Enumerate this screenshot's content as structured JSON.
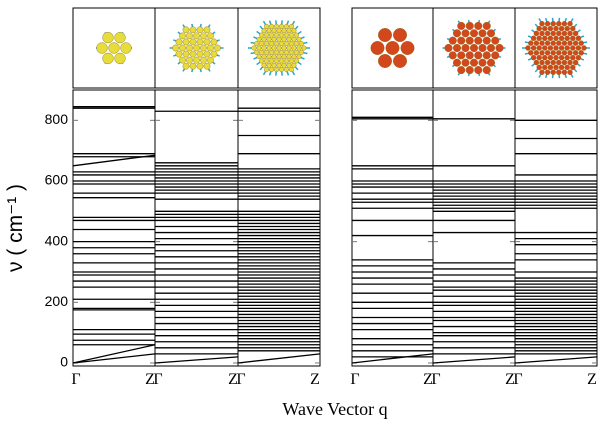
{
  "xlabel": "Wave Vector q",
  "ylabel": "ν ( cm⁻¹ )",
  "chart_data": [
    {
      "type": "line",
      "categories": [
        "Γ",
        "Z"
      ],
      "ylim": [
        -10,
        900
      ],
      "yticks": [
        0,
        200,
        400,
        600,
        800
      ],
      "bands": [
        [
          845,
          845
        ],
        [
          840,
          840
        ],
        [
          690,
          690
        ],
        [
          680,
          680
        ],
        [
          650,
          685
        ],
        [
          630,
          630
        ],
        [
          620,
          620
        ],
        [
          600,
          600
        ],
        [
          590,
          590
        ],
        [
          560,
          560
        ],
        [
          545,
          545
        ],
        [
          480,
          480
        ],
        [
          470,
          470
        ],
        [
          440,
          440
        ],
        [
          400,
          400
        ],
        [
          380,
          380
        ],
        [
          360,
          360
        ],
        [
          330,
          330
        ],
        [
          300,
          300
        ],
        [
          290,
          290
        ],
        [
          270,
          270
        ],
        [
          250,
          250
        ],
        [
          210,
          210
        ],
        [
          180,
          180
        ],
        [
          175,
          175
        ],
        [
          110,
          110
        ],
        [
          95,
          95
        ],
        [
          75,
          75
        ],
        [
          60,
          60
        ],
        [
          0,
          30
        ],
        [
          0,
          60
        ]
      ]
    },
    {
      "type": "line",
      "categories": [
        "Γ",
        "Z"
      ],
      "ylim": [
        -10,
        900
      ],
      "yticks": [
        0,
        200,
        400,
        600,
        800
      ],
      "bands": [
        [
          830,
          830
        ],
        [
          660,
          660
        ],
        [
          650,
          650
        ],
        [
          640,
          640
        ],
        [
          630,
          630
        ],
        [
          620,
          620
        ],
        [
          610,
          610
        ],
        [
          600,
          600
        ],
        [
          590,
          590
        ],
        [
          580,
          580
        ],
        [
          570,
          570
        ],
        [
          560,
          560
        ],
        [
          540,
          540
        ],
        [
          500,
          500
        ],
        [
          490,
          490
        ],
        [
          480,
          480
        ],
        [
          470,
          470
        ],
        [
          450,
          450
        ],
        [
          430,
          430
        ],
        [
          410,
          410
        ],
        [
          390,
          390
        ],
        [
          370,
          370
        ],
        [
          350,
          350
        ],
        [
          330,
          330
        ],
        [
          310,
          310
        ],
        [
          290,
          290
        ],
        [
          270,
          270
        ],
        [
          250,
          250
        ],
        [
          230,
          230
        ],
        [
          210,
          210
        ],
        [
          190,
          190
        ],
        [
          170,
          170
        ],
        [
          150,
          150
        ],
        [
          130,
          130
        ],
        [
          110,
          110
        ],
        [
          90,
          90
        ],
        [
          70,
          70
        ],
        [
          50,
          50
        ],
        [
          30,
          30
        ],
        [
          0,
          20
        ]
      ]
    },
    {
      "type": "line",
      "categories": [
        "Γ",
        "Z"
      ],
      "ylim": [
        -10,
        900
      ],
      "yticks": [
        0,
        200,
        400,
        600,
        800
      ],
      "bands": [
        [
          840,
          840
        ],
        [
          830,
          830
        ],
        [
          750,
          750
        ],
        [
          690,
          690
        ],
        [
          640,
          640
        ],
        [
          630,
          630
        ],
        [
          620,
          620
        ],
        [
          610,
          610
        ],
        [
          600,
          600
        ],
        [
          590,
          590
        ],
        [
          580,
          580
        ],
        [
          570,
          570
        ],
        [
          560,
          560
        ],
        [
          550,
          550
        ],
        [
          540,
          540
        ],
        [
          500,
          500
        ],
        [
          490,
          490
        ],
        [
          480,
          480
        ],
        [
          470,
          470
        ],
        [
          460,
          460
        ],
        [
          450,
          450
        ],
        [
          440,
          440
        ],
        [
          430,
          430
        ],
        [
          420,
          420
        ],
        [
          410,
          410
        ],
        [
          400,
          400
        ],
        [
          390,
          390
        ],
        [
          380,
          380
        ],
        [
          370,
          370
        ],
        [
          360,
          360
        ],
        [
          350,
          350
        ],
        [
          340,
          340
        ],
        [
          330,
          330
        ],
        [
          320,
          320
        ],
        [
          310,
          310
        ],
        [
          300,
          300
        ],
        [
          290,
          290
        ],
        [
          280,
          280
        ],
        [
          270,
          270
        ],
        [
          260,
          260
        ],
        [
          250,
          250
        ],
        [
          240,
          240
        ],
        [
          230,
          230
        ],
        [
          220,
          220
        ],
        [
          210,
          210
        ],
        [
          200,
          200
        ],
        [
          190,
          190
        ],
        [
          180,
          180
        ],
        [
          170,
          170
        ],
        [
          160,
          160
        ],
        [
          150,
          150
        ],
        [
          140,
          140
        ],
        [
          130,
          130
        ],
        [
          120,
          120
        ],
        [
          110,
          110
        ],
        [
          100,
          100
        ],
        [
          90,
          90
        ],
        [
          80,
          80
        ],
        [
          70,
          70
        ],
        [
          60,
          60
        ],
        [
          50,
          50
        ],
        [
          40,
          40
        ],
        [
          0,
          30
        ]
      ]
    },
    {
      "type": "line",
      "categories": [
        "Γ",
        "Z"
      ],
      "ylim": [
        -10,
        900
      ],
      "yticks": [
        0,
        200,
        400,
        600,
        800
      ],
      "bands": [
        [
          810,
          810
        ],
        [
          805,
          805
        ],
        [
          650,
          650
        ],
        [
          640,
          640
        ],
        [
          600,
          600
        ],
        [
          590,
          590
        ],
        [
          580,
          580
        ],
        [
          560,
          560
        ],
        [
          540,
          540
        ],
        [
          530,
          530
        ],
        [
          510,
          510
        ],
        [
          470,
          470
        ],
        [
          420,
          420
        ],
        [
          340,
          340
        ],
        [
          320,
          320
        ],
        [
          300,
          300
        ],
        [
          280,
          280
        ],
        [
          260,
          260
        ],
        [
          230,
          230
        ],
        [
          200,
          200
        ],
        [
          180,
          180
        ],
        [
          150,
          150
        ],
        [
          130,
          130
        ],
        [
          110,
          110
        ],
        [
          80,
          80
        ],
        [
          60,
          60
        ],
        [
          40,
          40
        ],
        [
          20,
          20
        ],
        [
          0,
          30
        ]
      ]
    },
    {
      "type": "line",
      "categories": [
        "Γ",
        "Z"
      ],
      "ylim": [
        -10,
        900
      ],
      "yticks": [
        0,
        200,
        400,
        600,
        800
      ],
      "bands": [
        [
          805,
          805
        ],
        [
          650,
          650
        ],
        [
          600,
          600
        ],
        [
          590,
          590
        ],
        [
          580,
          580
        ],
        [
          570,
          570
        ],
        [
          560,
          560
        ],
        [
          550,
          550
        ],
        [
          540,
          540
        ],
        [
          530,
          530
        ],
        [
          520,
          520
        ],
        [
          510,
          510
        ],
        [
          500,
          500
        ],
        [
          470,
          470
        ],
        [
          430,
          430
        ],
        [
          330,
          330
        ],
        [
          310,
          310
        ],
        [
          290,
          290
        ],
        [
          270,
          270
        ],
        [
          250,
          250
        ],
        [
          240,
          240
        ],
        [
          220,
          220
        ],
        [
          200,
          200
        ],
        [
          190,
          190
        ],
        [
          170,
          170
        ],
        [
          150,
          150
        ],
        [
          140,
          140
        ],
        [
          120,
          120
        ],
        [
          100,
          100
        ],
        [
          90,
          90
        ],
        [
          70,
          70
        ],
        [
          50,
          50
        ],
        [
          30,
          30
        ],
        [
          0,
          20
        ]
      ]
    },
    {
      "type": "line",
      "categories": [
        "Γ",
        "Z"
      ],
      "ylim": [
        -10,
        900
      ],
      "yticks": [
        0,
        200,
        400,
        600,
        800
      ],
      "bands": [
        [
          800,
          800
        ],
        [
          740,
          740
        ],
        [
          690,
          690
        ],
        [
          620,
          620
        ],
        [
          600,
          600
        ],
        [
          590,
          590
        ],
        [
          580,
          580
        ],
        [
          570,
          570
        ],
        [
          560,
          560
        ],
        [
          550,
          550
        ],
        [
          540,
          540
        ],
        [
          530,
          530
        ],
        [
          520,
          520
        ],
        [
          510,
          510
        ],
        [
          430,
          430
        ],
        [
          410,
          410
        ],
        [
          390,
          390
        ],
        [
          360,
          360
        ],
        [
          340,
          340
        ],
        [
          300,
          300
        ],
        [
          280,
          280
        ],
        [
          270,
          270
        ],
        [
          260,
          260
        ],
        [
          250,
          250
        ],
        [
          240,
          240
        ],
        [
          230,
          230
        ],
        [
          220,
          220
        ],
        [
          210,
          210
        ],
        [
          200,
          200
        ],
        [
          190,
          190
        ],
        [
          180,
          180
        ],
        [
          170,
          170
        ],
        [
          160,
          160
        ],
        [
          150,
          150
        ],
        [
          140,
          140
        ],
        [
          130,
          130
        ],
        [
          120,
          120
        ],
        [
          110,
          110
        ],
        [
          100,
          100
        ],
        [
          90,
          90
        ],
        [
          80,
          80
        ],
        [
          70,
          70
        ],
        [
          60,
          60
        ],
        [
          50,
          50
        ],
        [
          40,
          40
        ],
        [
          30,
          30
        ],
        [
          0,
          20
        ]
      ]
    }
  ]
}
